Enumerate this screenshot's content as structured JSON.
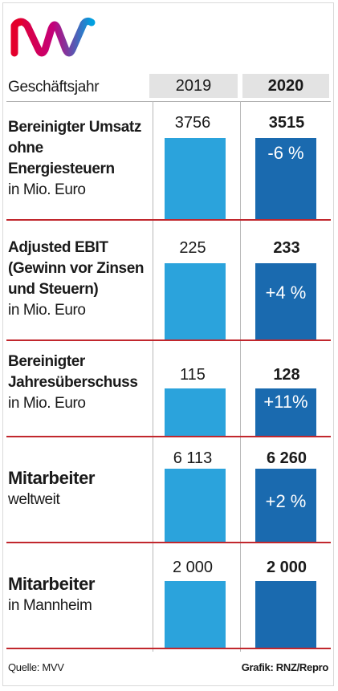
{
  "header": {
    "label": "Geschäftsjahr",
    "col_2019": "2019",
    "col_2020": "2020"
  },
  "rows": [
    {
      "label_strong": [
        "Bereinigter Umsatz",
        "ohne",
        "Energiesteuern"
      ],
      "label_light": [
        "in Mio. Euro"
      ],
      "value_2019": "3756",
      "value_2020": "3515",
      "change": "-6 %"
    },
    {
      "label_strong": [
        "Adjusted EBIT",
        "(Gewinn vor Zinsen",
        "und Steuern)"
      ],
      "label_light": [
        "in Mio. Euro"
      ],
      "value_2019": "225",
      "value_2020": "233",
      "change": "+4 %"
    },
    {
      "label_strong": [
        "Bereinigter",
        "Jahresüberschuss"
      ],
      "label_light": [
        "in Mio. Euro"
      ],
      "value_2019": "115",
      "value_2020": "128",
      "change": "+11%"
    },
    {
      "label_strong": [
        "Mitarbeiter"
      ],
      "label_light": [
        "weltweit"
      ],
      "value_2019": "6 113",
      "value_2020": "6 260",
      "change": "+2 %"
    },
    {
      "label_strong": [
        "Mitarbeiter"
      ],
      "label_light": [
        "in Mannheim"
      ],
      "value_2019": "2 000",
      "value_2020": "2 000",
      "change": ""
    }
  ],
  "chart_data": {
    "type": "bar",
    "categories": [
      "2019",
      "2020"
    ],
    "series": [
      {
        "name": "Bereinigter Umsatz ohne Energiesteuern in Mio. Euro",
        "values": [
          3756,
          3515
        ]
      },
      {
        "name": "Adjusted EBIT (Gewinn vor Zinsen und Steuern) in Mio. Euro",
        "values": [
          225,
          233
        ]
      },
      {
        "name": "Bereinigter Jahresüberschuss in Mio. Euro",
        "values": [
          115,
          128
        ]
      },
      {
        "name": "Mitarbeiter weltweit",
        "values": [
          6113,
          6260
        ]
      },
      {
        "name": "Mitarbeiter in Mannheim",
        "values": [
          2000,
          2000
        ]
      }
    ],
    "changes": [
      "-6 %",
      "+4 %",
      "+11%",
      "+2 %",
      ""
    ]
  },
  "colors": {
    "bar_2019": "#2ba3dc",
    "bar_2020": "#1a6aaf",
    "separator": "#c1272d",
    "header_bg": "#e3e3e3"
  },
  "footer": {
    "source": "Quelle: MVV",
    "credit": "Grafik: RNZ/Repro"
  },
  "logo": {
    "name": "mvv-logo",
    "text": "MVV"
  }
}
